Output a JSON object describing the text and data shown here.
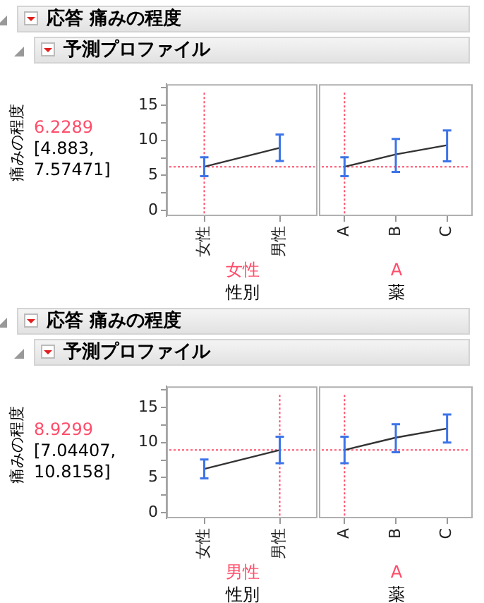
{
  "chart_data": [
    {
      "type": "line",
      "title": "応答 痛みの程度",
      "subtitle": "予測プロファイル",
      "ylabel": "痛みの程度",
      "xlabel": "性別",
      "categories": [
        "女性",
        "男性"
      ],
      "marker": "none",
      "series": [
        {
          "color": "#333333",
          "values": [
            6.2289,
            8.9299
          ],
          "errors": [
            [
              4.883,
              7.57471
            ],
            [
              7.04407,
              10.8158
            ]
          ]
        }
      ],
      "annotations": [
        "6.2289",
        "[4.883, 7.57471]",
        "女性"
      ],
      "ref_lines": [
        {
          "axis": "y",
          "value": 6.2289,
          "color": "#ff4d6a",
          "line_style": "dotted"
        },
        {
          "axis": "x",
          "value": "女性",
          "color": "#ff4d6a",
          "line_style": "dotted"
        }
      ],
      "ylim": [
        -0.8,
        18
      ],
      "yticks": [
        0,
        {
          "value": 2.5,
          "label": null
        },
        5,
        {
          "value": 7.5,
          "label": null
        },
        10,
        {
          "value": 12.5,
          "label": null
        },
        15,
        {
          "value": 17.5,
          "label": null
        }
      ]
    },
    {
      "type": "line",
      "xlabel": "薬",
      "categories": [
        "A",
        "B",
        "C"
      ],
      "marker": "none",
      "tick_labels": "x",
      "series": [
        {
          "color": "#333333",
          "values": [
            6.2289,
            8.0,
            9.3
          ],
          "errors": [
            [
              4.883,
              7.57471
            ],
            [
              5.5,
              10.2
            ],
            [
              7.0,
              11.4
            ]
          ]
        }
      ],
      "annotations": [
        "A"
      ],
      "ref_lines": [
        {
          "axis": "y",
          "value": 6.2289,
          "color": "#ff4d6a",
          "line_style": "dotted"
        },
        {
          "axis": "x",
          "value": "A",
          "color": "#ff4d6a",
          "line_style": "dotted"
        }
      ],
      "ylim": [
        -0.8,
        18
      ],
      "yticks": [
        0,
        5,
        10,
        15
      ]
    },
    {
      "type": "line",
      "title": "応答 痛みの程度",
      "subtitle": "予測プロファイル",
      "ylabel": "痛みの程度",
      "xlabel": "性別",
      "categories": [
        "女性",
        "男性"
      ],
      "marker": "none",
      "series": [
        {
          "color": "#333333",
          "values": [
            6.2289,
            8.9299
          ],
          "errors": [
            [
              4.883,
              7.57471
            ],
            [
              7.04407,
              10.8158
            ]
          ]
        }
      ],
      "annotations": [
        "8.9299",
        "[7.04407, 10.8158]",
        "男性"
      ],
      "ref_lines": [
        {
          "axis": "y",
          "value": 8.9299,
          "color": "#ff4d6a",
          "line_style": "dotted"
        },
        {
          "axis": "x",
          "value": "男性",
          "color": "#ff4d6a",
          "line_style": "dotted"
        }
      ],
      "ylim": [
        -0.8,
        18
      ],
      "yticks": [
        0,
        {
          "value": 2.5,
          "label": null
        },
        5,
        {
          "value": 7.5,
          "label": null
        },
        10,
        {
          "value": 12.5,
          "label": null
        },
        15,
        {
          "value": 17.5,
          "label": null
        }
      ]
    },
    {
      "type": "line",
      "xlabel": "薬",
      "categories": [
        "A",
        "B",
        "C"
      ],
      "marker": "none",
      "tick_labels": "x",
      "series": [
        {
          "color": "#333333",
          "values": [
            8.9299,
            10.7,
            12.0
          ],
          "errors": [
            [
              7.04407,
              10.8158
            ],
            [
              8.6,
              12.6
            ],
            [
              10.0,
              14.0
            ]
          ]
        }
      ],
      "annotations": [
        "A"
      ],
      "ref_lines": [
        {
          "axis": "y",
          "value": 8.9299,
          "color": "#ff4d6a",
          "line_style": "dotted"
        },
        {
          "axis": "x",
          "value": "A",
          "color": "#ff4d6a",
          "line_style": "dotted"
        }
      ],
      "ylim": [
        -0.8,
        18
      ],
      "yticks": [
        0,
        5,
        10,
        15
      ]
    }
  ]
}
